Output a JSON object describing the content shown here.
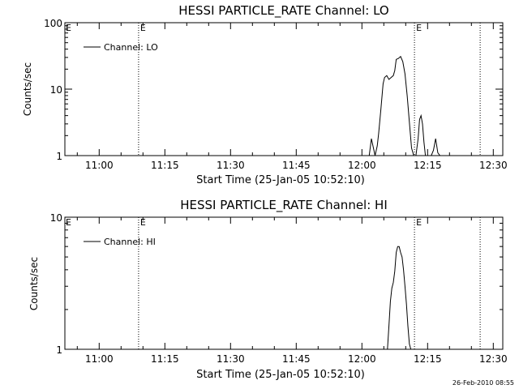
{
  "footer_timestamp": "26-Feb-2010 08:55",
  "chart_data": [
    {
      "type": "line",
      "title": "HESSI PARTICLE_RATE Channel: LO",
      "xlabel": "Start Time (25-Jan-05 10:52:10)",
      "ylabel": "Counts/sec",
      "y_scale": "log",
      "ylim": [
        1,
        100
      ],
      "y_ticks": [
        {
          "value": 1,
          "label": "1"
        },
        {
          "value": 10,
          "label": "10"
        },
        {
          "value": 100,
          "label": "100"
        }
      ],
      "xlim": [
        "10:52:10",
        "12:32:10"
      ],
      "x_ticks": [
        "11:00",
        "11:15",
        "11:30",
        "11:45",
        "12:00",
        "12:15",
        "12:30"
      ],
      "legend": {
        "position": "top-left",
        "entries": [
          "Channel: LO"
        ]
      },
      "event_markers": [
        {
          "time": "11:09:00",
          "label": "E"
        },
        {
          "time": "12:12:00",
          "label": "E"
        },
        {
          "time": "12:27:00",
          "label": ""
        }
      ],
      "series": [
        {
          "name": "Channel: LO",
          "x": [
            "12:01:40",
            "12:02:10",
            "12:03:00",
            "12:03:30",
            "12:03:50",
            "12:04:20",
            "12:04:50",
            "12:05:10",
            "12:05:40",
            "12:06:10",
            "12:06:40",
            "12:07:10",
            "12:07:30",
            "12:07:50",
            "12:08:20",
            "12:08:50",
            "12:09:20",
            "12:09:50",
            "12:10:20",
            "12:10:50",
            "12:11:20",
            "12:11:50",
            "12:12:20",
            "12:12:50",
            "12:13:10",
            "12:13:30",
            "12:13:50",
            "12:14:10",
            "12:14:30",
            "12:14:50",
            "12:15:20",
            "12:15:50",
            "12:16:20",
            "12:16:50",
            "12:17:20",
            "12:17:50",
            "12:18:20"
          ],
          "values": [
            1,
            1.8,
            1,
            1.4,
            2.2,
            5,
            12,
            15,
            16,
            14,
            15,
            16,
            19,
            28,
            29,
            31,
            26,
            17,
            8,
            3.2,
            1.3,
            1,
            1,
            1.8,
            3.5,
            4,
            3,
            1.6,
            1,
            1,
            1,
            1,
            1.2,
            1.8,
            1.1,
            1,
            1
          ]
        }
      ]
    },
    {
      "type": "line",
      "title": "HESSI PARTICLE_RATE Channel: HI",
      "xlabel": "Start Time (25-Jan-05 10:52:10)",
      "ylabel": "Counts/sec",
      "y_scale": "log",
      "ylim": [
        1,
        10
      ],
      "y_ticks": [
        {
          "value": 1,
          "label": "1"
        },
        {
          "value": 10,
          "label": "10"
        }
      ],
      "xlim": [
        "10:52:10",
        "12:32:10"
      ],
      "x_ticks": [
        "11:00",
        "11:15",
        "11:30",
        "11:45",
        "12:00",
        "12:15",
        "12:30"
      ],
      "legend": {
        "position": "top-left",
        "entries": [
          "Channel: HI"
        ]
      },
      "event_markers": [
        {
          "time": "11:09:00",
          "label": "E"
        },
        {
          "time": "12:12:00",
          "label": "E"
        },
        {
          "time": "12:27:00",
          "label": ""
        }
      ],
      "series": [
        {
          "name": "Channel: HI",
          "x": [
            "12:05:50",
            "12:06:10",
            "12:06:30",
            "12:06:50",
            "12:07:10",
            "12:07:30",
            "12:07:50",
            "12:08:10",
            "12:08:30",
            "12:08:50",
            "12:09:10",
            "12:09:30",
            "12:09:50",
            "12:10:10",
            "12:10:30",
            "12:10:50",
            "12:11:10"
          ],
          "values": [
            1,
            1.5,
            2.3,
            2.9,
            3.2,
            3.9,
            5.4,
            6,
            6,
            5.4,
            5,
            4,
            3,
            2.2,
            1.5,
            1.1,
            1
          ]
        }
      ]
    }
  ]
}
